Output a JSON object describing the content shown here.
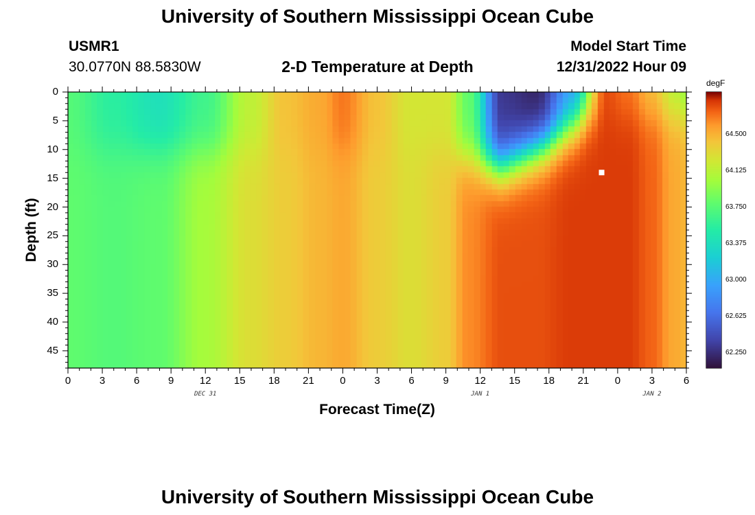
{
  "page": {
    "title": "University of Southern Mississippi Ocean Cube",
    "station_id": "USMR1",
    "coords": "30.0770N  88.5830W",
    "chart_title": "2-D Temperature at Depth",
    "model_start_label": "Model Start Time",
    "model_start_value": "12/31/2022 Hour 09",
    "bottom_title": "University of Southern Mississippi Ocean Cube"
  },
  "chart_data": {
    "type": "heatmap",
    "title": "2-D Temperature at Depth",
    "xlabel": "Forecast Time(Z)",
    "ylabel": "Depth (ft)",
    "x_ticks": [
      "0",
      "3",
      "6",
      "9",
      "12",
      "15",
      "18",
      "21",
      "0",
      "3",
      "6",
      "9",
      "12",
      "15",
      "18",
      "21",
      "0",
      "3",
      "6"
    ],
    "x_range_hours": [
      0,
      54
    ],
    "date_labels": [
      {
        "label": "DEC 31",
        "hour": 12
      },
      {
        "label": "JAN 1",
        "hour": 36
      },
      {
        "label": "JAN 2",
        "hour": 51
      }
    ],
    "y_ticks": [
      "0",
      "5",
      "10",
      "15",
      "20",
      "25",
      "30",
      "35",
      "40",
      "45"
    ],
    "y_range_ft": [
      0,
      48
    ],
    "colorbar": {
      "unit": "degF",
      "min": 62.1,
      "max": 64.95,
      "labels": [
        "64.500",
        "64.125",
        "63.750",
        "63.375",
        "63.000",
        "62.625",
        "62.250"
      ],
      "label_values": [
        64.5,
        64.125,
        63.75,
        63.375,
        63.0,
        62.625,
        62.25
      ]
    },
    "marker": {
      "hour": 46.6,
      "depth_ft": 14
    },
    "temperature_profile": {
      "hours": [
        0,
        4,
        8,
        12,
        16,
        19,
        22,
        24,
        27,
        30,
        33,
        35,
        38,
        41,
        44,
        47,
        49,
        51,
        53,
        54
      ],
      "surface": [
        63.75,
        63.55,
        63.4,
        63.65,
        64.15,
        64.45,
        64.55,
        64.7,
        64.45,
        64.25,
        64.25,
        63.8,
        62.3,
        62.2,
        62.9,
        64.8,
        64.7,
        64.45,
        64.1,
        63.95
      ],
      "deep": [
        63.8,
        63.75,
        63.8,
        64.05,
        64.3,
        64.4,
        64.5,
        64.55,
        64.4,
        64.3,
        64.4,
        64.65,
        64.8,
        64.8,
        64.85,
        64.85,
        64.85,
        64.75,
        64.55,
        64.5
      ]
    }
  }
}
